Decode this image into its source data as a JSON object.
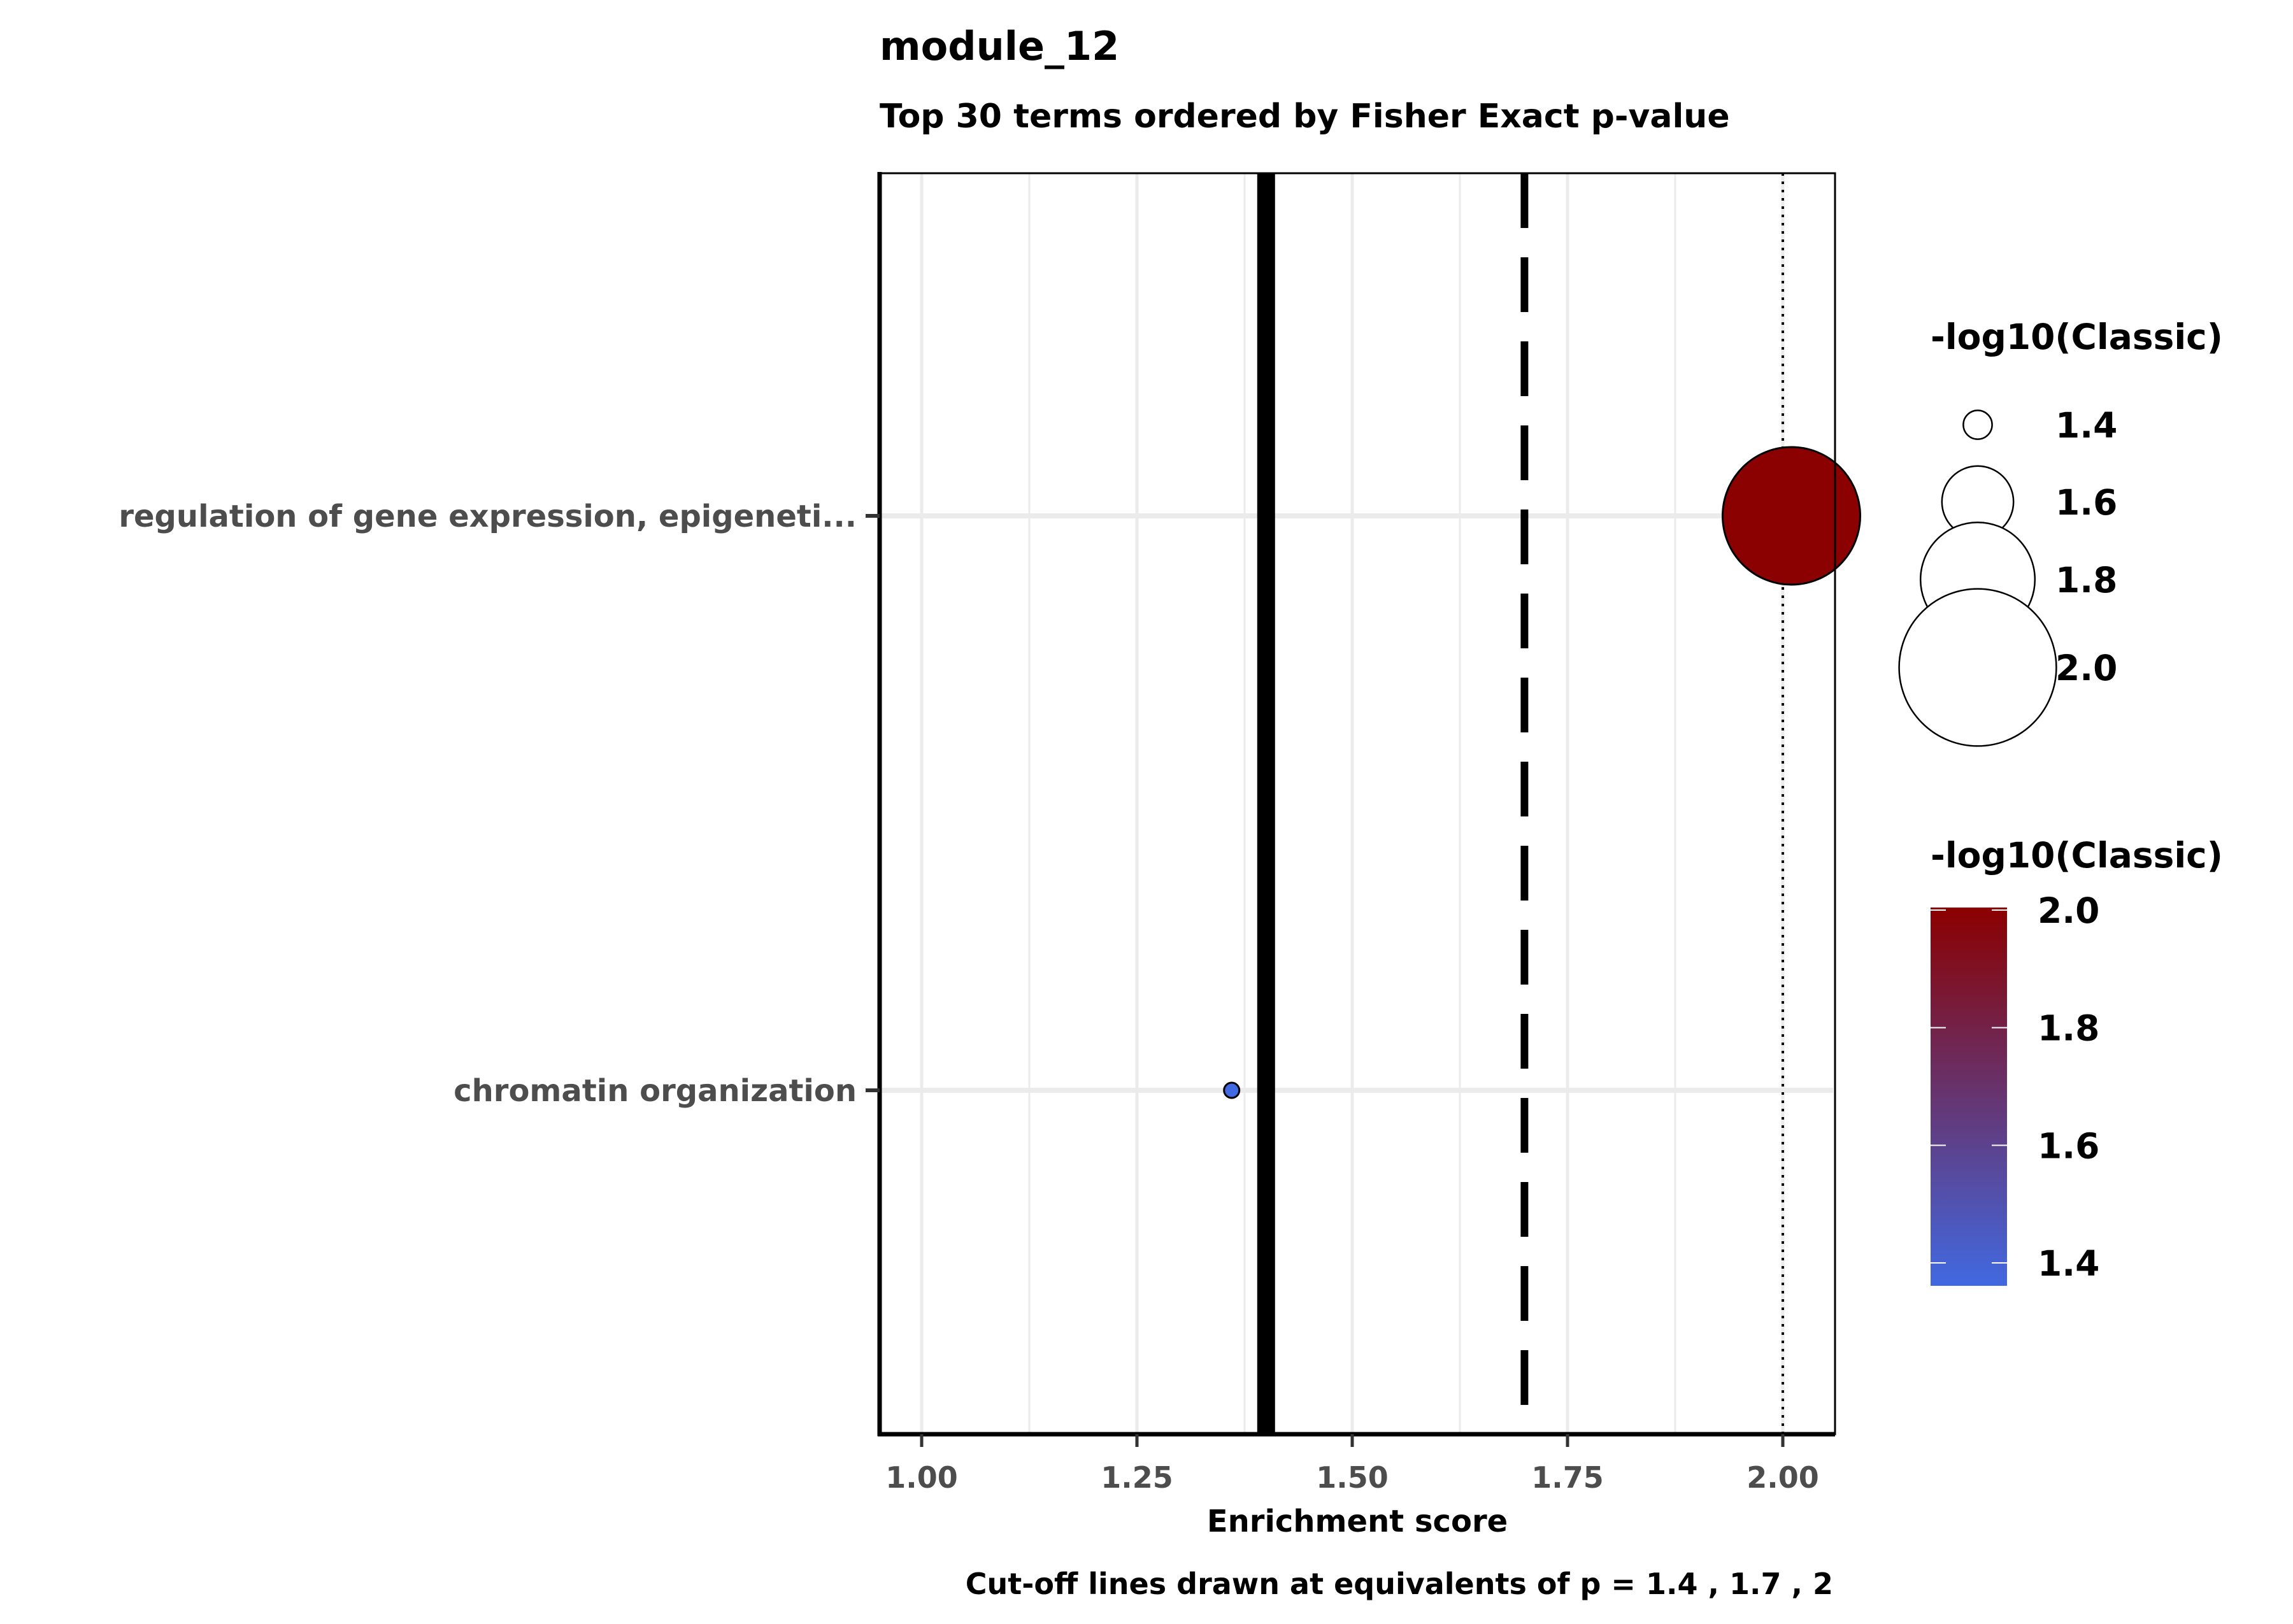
{
  "chart_data": {
    "type": "scatter",
    "title": "module_12",
    "subtitle": "Top 30 terms ordered by Fisher Exact p-value",
    "xlabel": "Enrichment score",
    "ylabel": "",
    "caption": "Cut-off lines drawn at equivalents of p = 1.4 , 1.7 , 2",
    "xlim": [
      0.95,
      2.07
    ],
    "xticks": [
      1.0,
      1.25,
      1.5,
      1.75,
      2.0
    ],
    "xtick_labels": [
      "1.00",
      "1.25",
      "1.50",
      "1.75",
      "2.00"
    ],
    "grid": true,
    "categories": [
      "regulation of gene expression, epigeneti...",
      "chromatin organization"
    ],
    "points": [
      {
        "term": "regulation of gene expression, epigeneti...",
        "x": 2.01,
        "classic": 2.0,
        "color": "#8b0000"
      },
      {
        "term": "chromatin organization",
        "x": 1.36,
        "classic": 1.4,
        "color": "#4169e1"
      }
    ],
    "cutoff_lines": [
      {
        "x": 1.4,
        "style": "solid"
      },
      {
        "x": 1.7,
        "style": "dashed"
      },
      {
        "x": 2.0,
        "style": "dotted"
      }
    ],
    "legends": {
      "size": {
        "title": "-log10(Classic)",
        "values": [
          1.4,
          1.6,
          1.8,
          2.0
        ],
        "labels": [
          "1.4",
          "1.6",
          "1.8",
          "2.0"
        ],
        "position": "right"
      },
      "color": {
        "title": "-log10(Classic)",
        "low_color": "#4169e1",
        "high_color": "#8b0000",
        "range": [
          1.4,
          2.0
        ],
        "ticks": [
          1.4,
          1.6,
          1.8,
          2.0
        ],
        "labels": [
          "1.4",
          "1.6",
          "1.8",
          "2.0"
        ],
        "position": "right"
      }
    }
  }
}
